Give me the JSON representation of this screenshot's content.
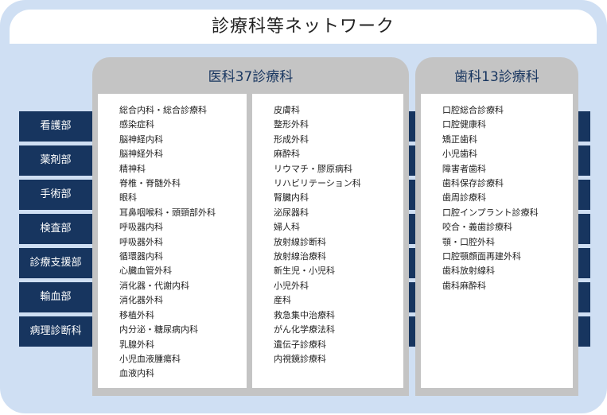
{
  "title": "診療科等ネットワーク",
  "departments": [
    "看護部",
    "薬剤部",
    "手術部",
    "検査部",
    "診療支援部",
    "輸血部",
    "病理診断科"
  ],
  "medical": {
    "heading": "医科37診療科",
    "col1": [
      "総合内科・総合診療科",
      "感染症科",
      "脳神経内科",
      "脳神経外科",
      "精神科",
      "脊椎・脊髄外科",
      "眼科",
      "耳鼻咽喉科・頭頸部外科",
      "呼吸器内科",
      "呼吸器外科",
      "循環器内科",
      "心臓血管外科",
      "消化器・代謝内科",
      "消化器外科",
      "移植外科",
      "内分泌・糖尿病内科",
      "乳腺外科",
      "小児血液腫瘍科",
      "血液内科"
    ],
    "col2": [
      "皮膚科",
      "整形外科",
      "形成外科",
      "麻酔科",
      "リウマチ・膠原病科",
      "リハビリテーション科",
      "腎臓内科",
      "泌尿器科",
      "婦人科",
      "放射線診断科",
      "放射線治療科",
      "新生児・小児科",
      "小児外科",
      "産科",
      "救急集中治療科",
      "がん化学療法科",
      "遺伝子診療科",
      "内視鏡診療科"
    ]
  },
  "dental": {
    "heading": "歯科13診療科",
    "items": [
      "口腔総合診療科",
      "口腔健康科",
      "矯正歯科",
      "小児歯科",
      "障害者歯科",
      "歯科保存診療科",
      "歯周診療科",
      "口腔インプラント診療科",
      "咬合・義歯診療科",
      "顎・口腔外科",
      "口腔顎顔面再建外科",
      "歯科放射線科",
      "歯科麻酔科"
    ]
  },
  "colors": {
    "background": "#cfdff3",
    "bar": "#17355f",
    "panel": "#c4c4c4"
  }
}
